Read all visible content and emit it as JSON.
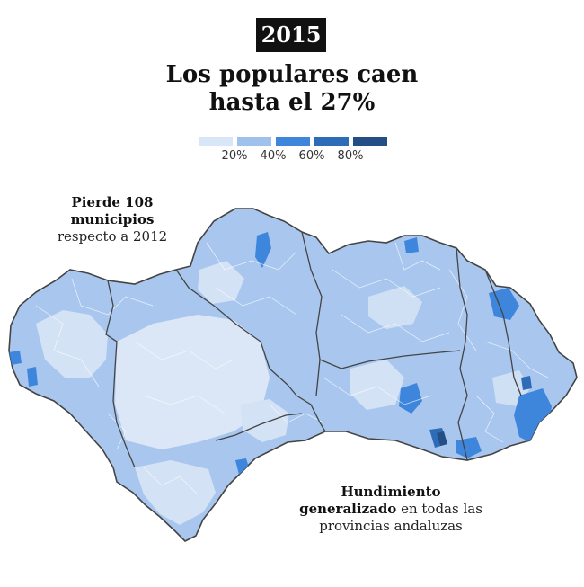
{
  "header": {
    "year": "2015",
    "title_line1": "Los populares caen",
    "title_line2": "hasta el 27%"
  },
  "legend": {
    "colors": [
      "#d8e6f8",
      "#9fc2ec",
      "#3d86dc",
      "#2f6cb8",
      "#234f86"
    ],
    "ticks": [
      "20%",
      "40%",
      "60%",
      "80%"
    ]
  },
  "annotations": {
    "left_bold": "Pierde 108 municipios",
    "left_normal": "respecto a 2012",
    "right_bold": "Hundimiento generalizado",
    "right_normal": "en todas las provincias andaluzas"
  },
  "map": {
    "region": "Andalucía",
    "base_color": "#a9c7ee",
    "light_color": "#dbe6f6",
    "border_color": "#444444"
  }
}
